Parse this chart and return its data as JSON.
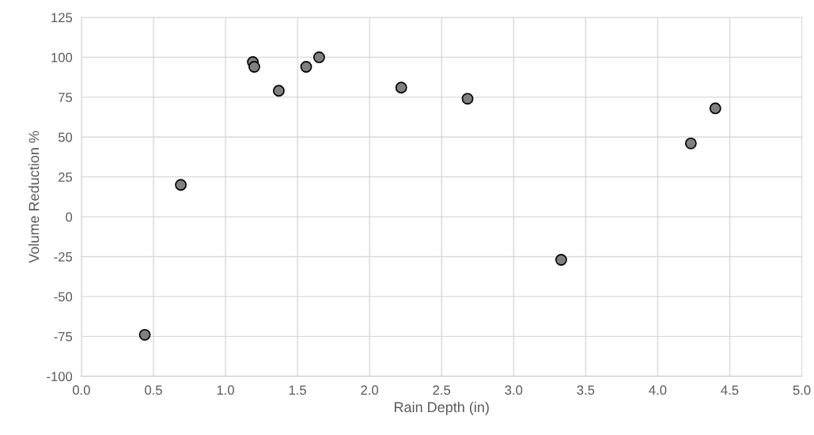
{
  "chart_data": {
    "type": "scatter",
    "xlabel": "Rain Depth (in)",
    "ylabel": "Volume Reduction %",
    "x": [
      0.44,
      0.69,
      1.19,
      1.2,
      1.37,
      1.56,
      1.65,
      2.22,
      2.68,
      3.33,
      4.23,
      4.4
    ],
    "series": [
      {
        "color": "#808080",
        "values": [
          -74,
          20,
          97,
          94,
          79,
          94,
          100,
          81,
          74,
          -27,
          46,
          68
        ]
      }
    ],
    "xlim": [
      0,
      5
    ],
    "xticks": [
      {
        "value": 0,
        "label": "0.0"
      },
      {
        "value": 0.5,
        "label": "0.5"
      },
      {
        "value": 1,
        "label": "1.0"
      },
      {
        "value": 1.5,
        "label": "1.5"
      },
      {
        "value": 2,
        "label": "2.0"
      },
      {
        "value": 2.5,
        "label": "2.5"
      },
      {
        "value": 3,
        "label": "3.0"
      },
      {
        "value": 3.5,
        "label": "3.5"
      },
      {
        "value": 4,
        "label": "4.0"
      },
      {
        "value": 4.5,
        "label": "4.5"
      },
      {
        "value": 5,
        "label": "5.0"
      }
    ],
    "ylim": [
      -100,
      125
    ],
    "yticks": [
      -100,
      -75,
      -50,
      -25,
      0,
      25,
      50,
      75,
      100,
      125
    ],
    "grid": true,
    "marker": "circle"
  }
}
